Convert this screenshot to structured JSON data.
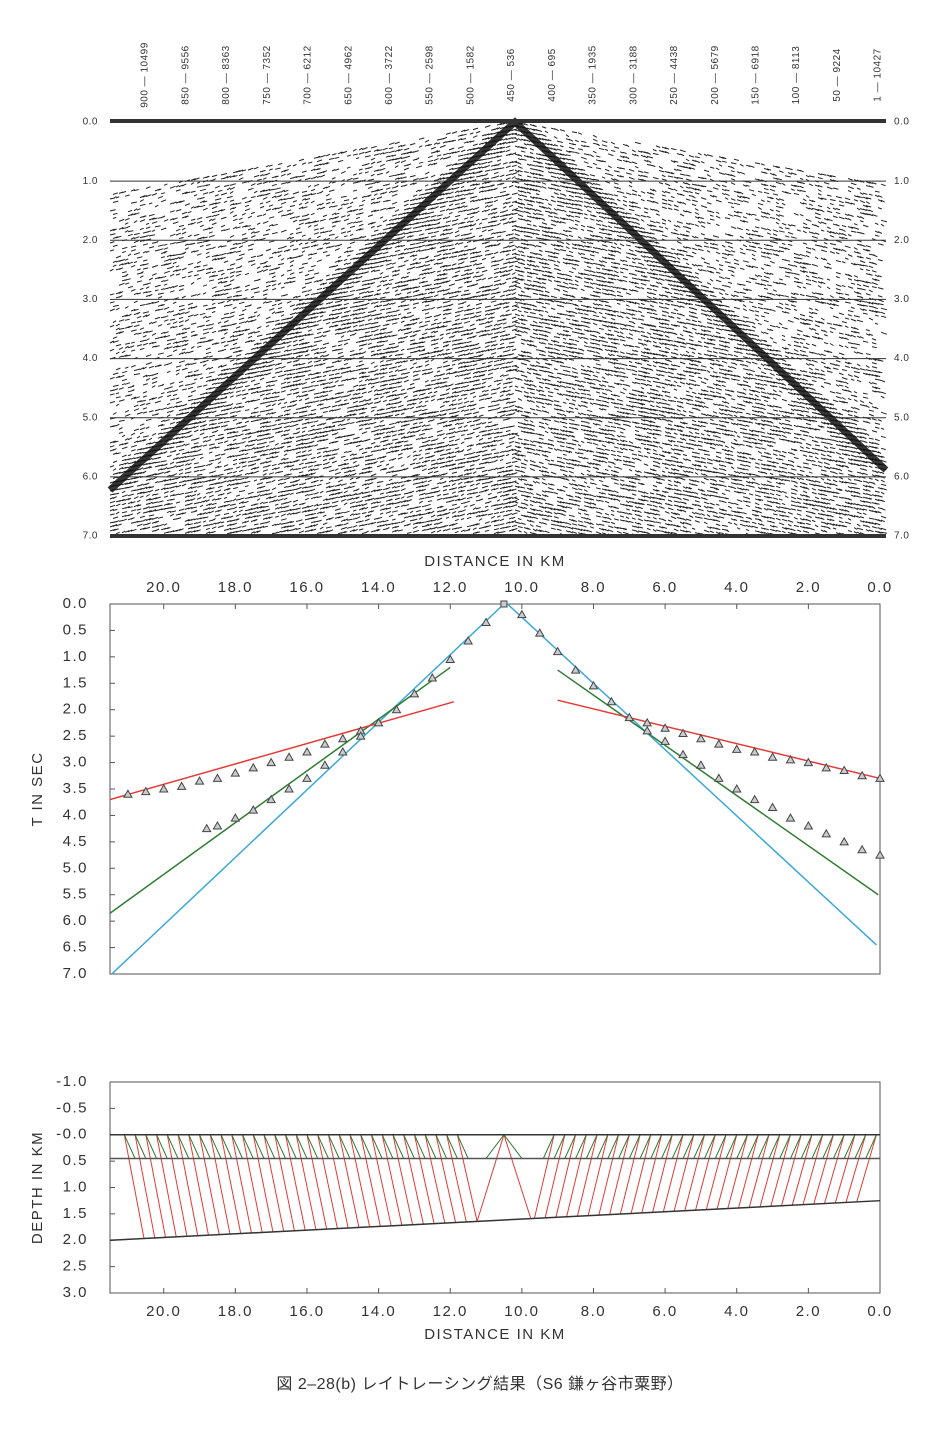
{
  "chart_data": [
    {
      "type": "seismic-section",
      "trace_labels": [
        "900 — 10499",
        "850 — 9556",
        "800 — 8363",
        "750 — 7352",
        "700 — 6212",
        "650 — 4962",
        "600 — 3722",
        "550 — 2598",
        "500 — 1582",
        "450 — 536",
        "400 — 695",
        "350 — 1935",
        "300 — 3188",
        "250 — 4438",
        "200 — 5679",
        "150 — 6918",
        "100 — 8113",
        "50 — 9224",
        "1 — 10427"
      ],
      "xlim": [
        21.5,
        0
      ],
      "ylim": [
        0,
        7
      ],
      "yticks": [
        {
          "value": 0,
          "label": "0.0"
        },
        {
          "value": 1,
          "label": "1.0"
        },
        {
          "value": 2,
          "label": "2.0"
        },
        {
          "value": 3,
          "label": "3.0"
        },
        {
          "value": 4,
          "label": "4.0"
        },
        {
          "value": 5,
          "label": "5.0"
        },
        {
          "value": 6,
          "label": "6.0"
        },
        {
          "value": 7,
          "label": "7.0"
        }
      ]
    },
    {
      "type": "line",
      "xlabel": "DISTANCE IN KM",
      "ylabel": "T IN SEC",
      "xlim": [
        21.5,
        0
      ],
      "ylim": [
        0,
        7
      ],
      "xticks": [
        {
          "value": 20,
          "label": "20.0"
        },
        {
          "value": 18,
          "label": "18.0"
        },
        {
          "value": 16,
          "label": "16.0"
        },
        {
          "value": 14,
          "label": "14.0"
        },
        {
          "value": 12,
          "label": "12.0"
        },
        {
          "value": 10,
          "label": "10.0"
        },
        {
          "value": 8,
          "label": "8.0"
        },
        {
          "value": 6,
          "label": "6.0"
        },
        {
          "value": 4,
          "label": "4.0"
        },
        {
          "value": 2,
          "label": "2.0"
        },
        {
          "value": 0,
          "label": "0.0"
        }
      ],
      "yticks": [
        {
          "value": 0,
          "label": "0.0"
        },
        0.5,
        {
          "value": 1,
          "label": "1.0"
        },
        1.5,
        {
          "value": 2,
          "label": "2.0"
        },
        2.5,
        {
          "value": 3,
          "label": "3.0"
        },
        3.5,
        {
          "value": 4,
          "label": "4.0"
        },
        4.5,
        {
          "value": 5,
          "label": "5.0"
        },
        5.5,
        {
          "value": 6,
          "label": "6.0"
        },
        6.5,
        {
          "value": 7,
          "label": "7.0"
        }
      ],
      "series": [
        {
          "color": "#3aa8d8",
          "x": [
            10.5,
            21.45,
            null,
            10.4,
            0.1
          ],
          "values": [
            0.0,
            7.0,
            null,
            0.0,
            6.45
          ]
        },
        {
          "color": "#2e7d32",
          "x": [
            12.0,
            21.5,
            null,
            9.0,
            0.05
          ],
          "values": [
            1.2,
            5.85,
            null,
            1.25,
            5.5
          ]
        },
        {
          "color": "#e53935",
          "x": [
            11.9,
            21.5,
            null,
            9.0,
            0.0
          ],
          "values": [
            1.85,
            3.7,
            null,
            1.82,
            3.3
          ]
        },
        {
          "color": "#444",
          "marker": "triangle",
          "x": [
            11.0,
            11.5,
            12.0,
            12.5,
            13.0,
            13.5,
            14.0,
            14.5,
            15.0,
            15.5,
            16.0,
            16.5,
            17.0,
            17.5,
            18.0,
            18.5,
            19.0,
            19.5,
            20.0,
            20.5,
            21.0,
            14.5,
            15.0,
            15.5,
            16.0,
            16.5,
            17.0,
            17.5,
            18.0,
            18.5,
            18.8,
            10.0,
            9.5,
            9.0,
            8.5,
            8.0,
            7.5,
            7.0,
            6.5,
            6.0,
            5.5,
            5.0,
            4.5,
            4.0,
            3.5,
            3.0,
            2.5,
            2.0,
            1.5,
            1.0,
            0.5,
            0.0,
            6.5,
            6.0,
            5.5,
            5.0,
            4.5,
            4.0,
            3.5,
            3.0,
            2.5,
            2.0,
            1.5,
            1.0,
            0.5,
            0.0
          ],
          "values": [
            0.35,
            0.7,
            1.05,
            1.4,
            1.7,
            2.0,
            2.25,
            2.4,
            2.55,
            2.65,
            2.8,
            2.9,
            3.0,
            3.1,
            3.2,
            3.3,
            3.35,
            3.45,
            3.5,
            3.55,
            3.6,
            2.5,
            2.8,
            3.05,
            3.3,
            3.5,
            3.7,
            3.9,
            4.05,
            4.2,
            4.25,
            0.2,
            0.55,
            0.9,
            1.25,
            1.55,
            1.85,
            2.15,
            2.25,
            2.35,
            2.45,
            2.55,
            2.65,
            2.75,
            2.8,
            2.9,
            2.95,
            3.0,
            3.1,
            3.15,
            3.25,
            3.3,
            2.4,
            2.6,
            2.85,
            3.05,
            3.3,
            3.5,
            3.7,
            3.85,
            4.05,
            4.2,
            4.35,
            4.5,
            4.65,
            4.75
          ]
        },
        {
          "color": "#444",
          "marker": "square",
          "x": [
            10.5
          ],
          "values": [
            0.0
          ]
        }
      ]
    },
    {
      "type": "ray-diagram",
      "xlabel": "DISTANCE IN KM",
      "ylabel": "DEPTH IN KM",
      "xlim": [
        21.5,
        0
      ],
      "ylim": [
        -1,
        3
      ],
      "xticks": [
        {
          "value": 20,
          "label": "20.0"
        },
        {
          "value": 18,
          "label": "18.0"
        },
        {
          "value": 16,
          "label": "16.0"
        },
        {
          "value": 14,
          "label": "14.0"
        },
        {
          "value": 12,
          "label": "12.0"
        },
        {
          "value": 10,
          "label": "10.0"
        },
        {
          "value": 8,
          "label": "8.0"
        },
        {
          "value": 6,
          "label": "6.0"
        },
        {
          "value": 4,
          "label": "4.0"
        },
        {
          "value": 2,
          "label": "2.0"
        },
        {
          "value": 0,
          "label": "0.0"
        }
      ],
      "yticks": [
        {
          "value": -1,
          "label": "-1.0"
        },
        -0.5,
        {
          "value": 0,
          "label": "-0.0"
        },
        0.5,
        {
          "value": 1,
          "label": "1.0"
        },
        1.5,
        {
          "value": 2,
          "label": "2.0"
        },
        2.5,
        {
          "value": 3,
          "label": "3.0"
        }
      ],
      "ray_colors": [
        "#e53935",
        "#2e7d32"
      ],
      "series": [
        {
          "color": "#333",
          "x": [
            21.5,
            0
          ],
          "values": [
            0,
            0
          ]
        },
        {
          "color": "#555",
          "x": [
            21.5,
            0
          ],
          "values": [
            0.45,
            0.45
          ]
        },
        {
          "color": "#333",
          "x": [
            21.5,
            0
          ],
          "values": [
            2.0,
            1.25
          ]
        }
      ]
    }
  ],
  "caption": "図 2–28(b)  レイトレーシング結果（S6 鎌ヶ谷市粟野）"
}
